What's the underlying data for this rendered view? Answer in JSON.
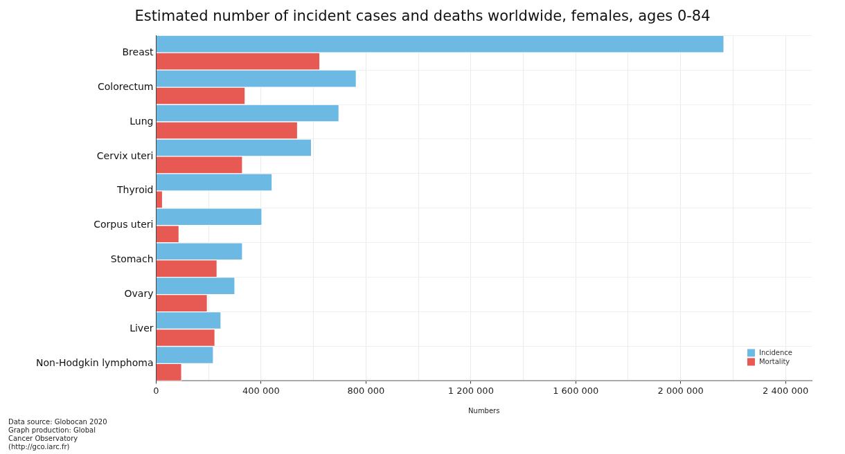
{
  "chart_data": {
    "type": "bar",
    "orientation": "horizontal",
    "title": "Estimated number of incident cases and deaths worldwide, females, ages 0-84",
    "xlabel": "Numbers",
    "categories": [
      "Breast",
      "Colorectum",
      "Lung",
      "Cervix uteri",
      "Thyroid",
      "Corpus uteri",
      "Stomach",
      "Ovary",
      "Liver",
      "Non-Hodgkin lymphoma"
    ],
    "series": [
      {
        "name": "Incidence",
        "color": "#6cb9e4",
        "values": [
          2165000,
          763000,
          697000,
          592000,
          442000,
          403000,
          329000,
          300000,
          247000,
          218000
        ]
      },
      {
        "name": "Mortality",
        "color": "#e65a53",
        "values": [
          624000,
          339000,
          539000,
          329000,
          24000,
          87000,
          232000,
          195000,
          224000,
          97000
        ]
      }
    ],
    "xlim": [
      0,
      2500000
    ],
    "xticks": [
      0,
      {
        "value": 200000,
        "label": null
      },
      {
        "value": 400000,
        "label": "400 000"
      },
      {
        "value": 600000,
        "label": null
      },
      {
        "value": 800000,
        "label": "800 000"
      },
      {
        "value": 1000000,
        "label": null
      },
      {
        "value": 1200000,
        "label": "1 200 000"
      },
      {
        "value": 1400000,
        "label": null
      },
      {
        "value": 1600000,
        "label": "1 600 000"
      },
      {
        "value": 1800000,
        "label": null
      },
      {
        "value": 2000000,
        "label": "2 000 000"
      },
      {
        "value": 2200000,
        "label": null
      },
      {
        "value": 2400000,
        "label": "2 400 000"
      }
    ],
    "grid": true,
    "legend": "bottom right",
    "annotations": [
      "Data source: Globocan 2020",
      "Graph production: Global Cancer Observatory (http://gco.iarc.fr)"
    ]
  }
}
